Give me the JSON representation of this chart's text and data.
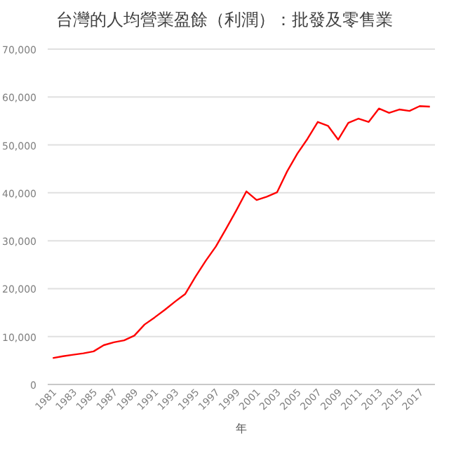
{
  "chart_data": {
    "type": "line",
    "title": "台灣的人均營業盈餘（利潤）：批發及零售業",
    "xlabel": "年",
    "categories": [
      "1981",
      null,
      "1983",
      null,
      "1985",
      null,
      "1987",
      null,
      "1989",
      null,
      "1991",
      null,
      "1993",
      null,
      "1995",
      null,
      "1997",
      null,
      "1999",
      null,
      "2001",
      null,
      "2003",
      null,
      "2005",
      null,
      "2007",
      null,
      "2009",
      null,
      "2011",
      null,
      "2013",
      null,
      "2015",
      null,
      "2017",
      null
    ],
    "series": [
      {
        "color": "#ff0000",
        "values": [
          5500,
          5900,
          6200,
          6500,
          6900,
          8200,
          8800,
          9200,
          10200,
          12500,
          14000,
          15600,
          17300,
          18900,
          22500,
          25800,
          28800,
          32500,
          36300,
          40300,
          38500,
          39200,
          40100,
          44500,
          48200,
          51300,
          54800,
          54000,
          51100,
          54600,
          55500,
          54800,
          57600,
          56700,
          57400,
          57100,
          58100,
          58000
        ]
      }
    ],
    "ylim": [
      0,
      70000
    ],
    "yticks": [
      {
        "value": 0,
        "label": "0"
      },
      {
        "value": 10000,
        "label": "10,000"
      },
      {
        "value": 20000,
        "label": "20,000"
      },
      {
        "value": 30000,
        "label": "30,000"
      },
      {
        "value": 40000,
        "label": "40,000"
      },
      {
        "value": 50000,
        "label": "50,000"
      },
      {
        "value": 60000,
        "label": "60,000"
      },
      {
        "value": 70000,
        "label": "70,000"
      }
    ],
    "grid": "y",
    "marker": "none",
    "line_style": "solid"
  }
}
